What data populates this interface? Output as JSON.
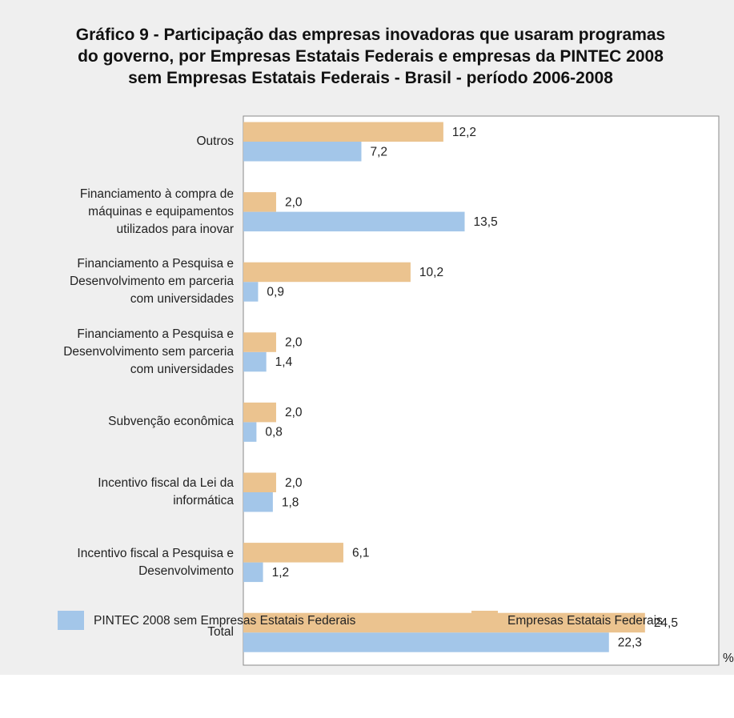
{
  "chart_data": {
    "type": "barh",
    "title": "Gráfico 9 - Participação das empresas inovadoras que usaram programas\ndo governo, por Empresas Estatais Federais e empresas da PINTEC 2008\nsem Empresas Estatais Federais - Brasil - período 2006-2008",
    "x_label": "%",
    "categories": [
      "Outros",
      "Financiamento à compra de\nmáquinas e equipamentos\nutilizados para inovar",
      "Financiamento a Pesquisa e\nDesenvolvimento em parceria\ncom universidades",
      "Financiamento a Pesquisa e\nDesenvolvimento sem parceria\ncom universidades",
      "Subvenção econômica",
      "Incentivo fiscal da Lei da\ninformática",
      "Incentivo fiscal a Pesquisa e\nDesenvolvimento",
      "Total"
    ],
    "series": [
      {
        "name": "PINTEC 2008 sem Empresas Estatais Federais",
        "color": "#a3c6e9",
        "values": [
          7.2,
          13.5,
          0.9,
          1.4,
          0.8,
          1.8,
          1.2,
          22.3
        ],
        "value_labels": [
          "7,2",
          "13,5",
          "0,9",
          "1,4",
          "0,8",
          "1,8",
          "1,2",
          "22,3"
        ]
      },
      {
        "name": "Empresas Estatais Federais",
        "color": "#ebc38f",
        "values": [
          12.2,
          2.0,
          10.2,
          2.0,
          2.0,
          2.0,
          6.1,
          24.5
        ],
        "value_labels": [
          "12,2",
          "2,0",
          "10,2",
          "2,0",
          "2,0",
          "2,0",
          "6,1",
          "24,5"
        ]
      }
    ],
    "xlim": [
      0,
      29
    ]
  }
}
